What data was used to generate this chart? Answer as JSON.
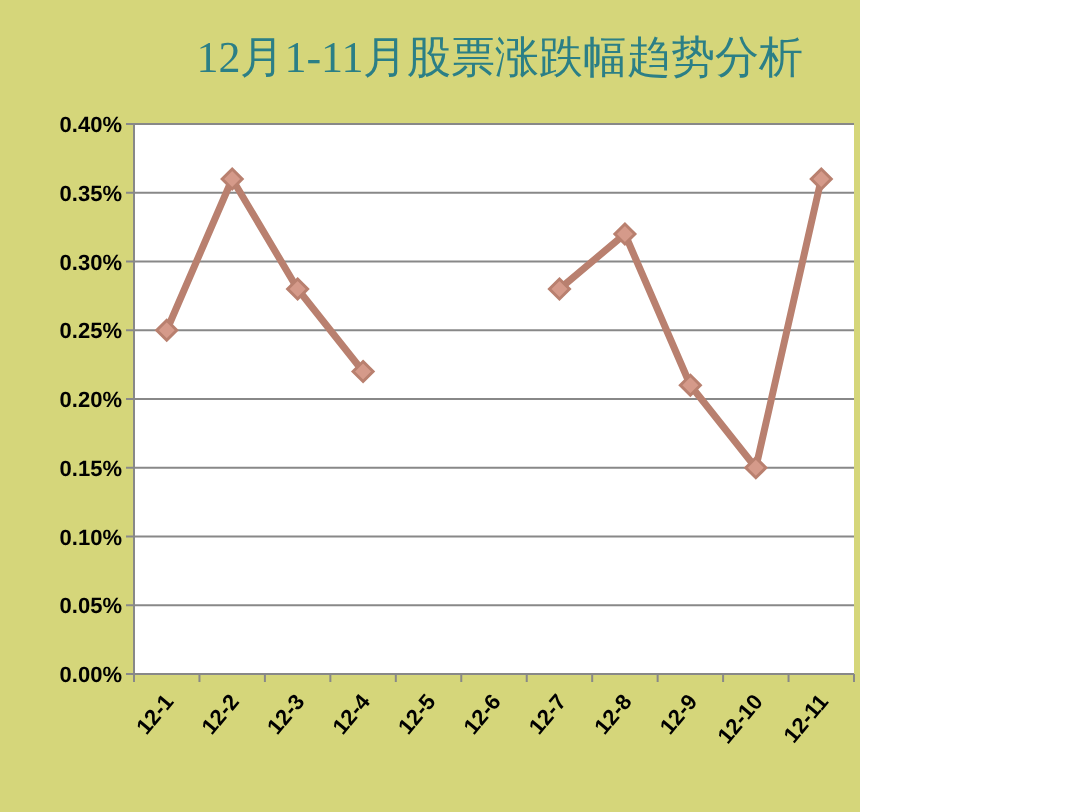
{
  "chart_data": {
    "type": "line",
    "title": "12月1-11月股票涨跌幅趋势分析",
    "categories": [
      "12-1",
      "12-2",
      "12-3",
      "12-4",
      "12-5",
      "12-6",
      "12-7",
      "12-8",
      "12-9",
      "12-10",
      "12-11"
    ],
    "series": [
      {
        "color": "#b9806f",
        "values": [
          0.25,
          0.36,
          0.28,
          0.22,
          null,
          null,
          0.28,
          0.32,
          0.21,
          0.15,
          0.36
        ]
      }
    ],
    "ylim": [
      0,
      0.4
    ],
    "yticks": [
      {
        "value": 0,
        "label": "0.00%"
      },
      {
        "value": 0.05,
        "label": "0.05%"
      },
      {
        "value": 0.1,
        "label": "0.10%"
      },
      {
        "value": 0.15,
        "label": "0.15%"
      },
      {
        "value": 0.2,
        "label": "0.20%"
      },
      {
        "value": 0.25,
        "label": "0.25%"
      },
      {
        "value": 0.3,
        "label": "0.30%"
      },
      {
        "value": 0.35,
        "label": "0.35%"
      },
      {
        "value": 0.4,
        "label": "0.40%"
      }
    ],
    "grid": "y",
    "marker": "diamond",
    "line_style": "solid"
  }
}
